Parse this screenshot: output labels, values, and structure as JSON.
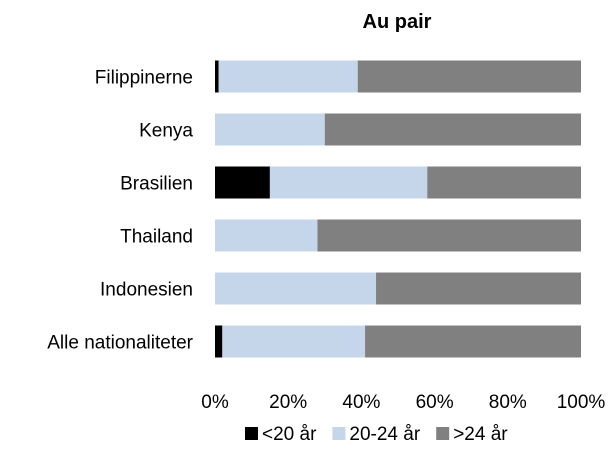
{
  "chart_data": {
    "type": "bar",
    "orientation": "horizontal",
    "stacked": "percent",
    "title": "Au pair",
    "categories": [
      "Filippinerne",
      "Kenya",
      "Brasilien",
      "Thailand",
      "Indonesien",
      "Alle nationaliteter"
    ],
    "series": [
      {
        "name": "<20 år",
        "color": "#000000",
        "values": [
          1,
          0,
          15,
          0,
          0,
          2
        ]
      },
      {
        "name": "20-24 år",
        "color": "#c5d5ea",
        "values": [
          38,
          30,
          43,
          28,
          44,
          39
        ]
      },
      {
        "name": ">24 år",
        "color": "#808080",
        "values": [
          61,
          70,
          42,
          72,
          56,
          59
        ]
      }
    ],
    "xlim": [
      0,
      100
    ],
    "xticks": [
      "0%",
      "20%",
      "40%",
      "60%",
      "80%",
      "100%"
    ],
    "grid": false,
    "legend": "bottom"
  }
}
